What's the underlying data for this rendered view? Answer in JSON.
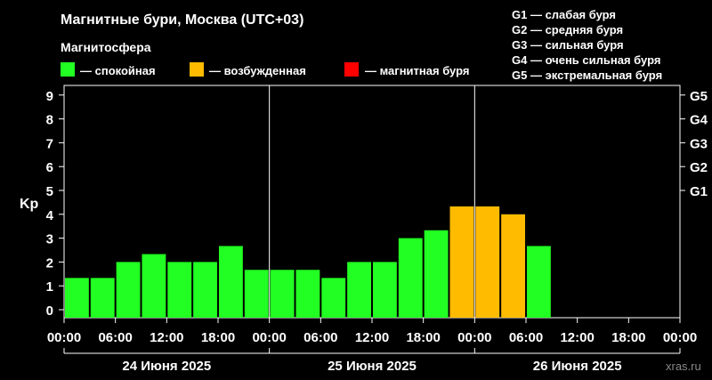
{
  "header": {
    "title": "Магнитные бури, Москва (UTC+03)",
    "subtitle": "Магнитосфера"
  },
  "legend": [
    {
      "label": "— спокойная",
      "color": "#22ff22"
    },
    {
      "label": "— возбужденная",
      "color": "#ffbb00"
    },
    {
      "label": "— магнитная буря",
      "color": "#ff0000"
    }
  ],
  "storm_scale": [
    "G1 — слабая буря",
    "G2 — средняя буря",
    "G3 — сильная буря",
    "G4 — очень сильная буря",
    "G5 — экстремальная буря"
  ],
  "watermark": "xras.ru",
  "chart_data": {
    "type": "bar",
    "ylabel": "Kp",
    "ylim": [
      0,
      9
    ],
    "yticks": [
      "0",
      "1",
      "2",
      "3",
      "4",
      "5",
      "6",
      "7",
      "8",
      "9"
    ],
    "right_ticks": [
      {
        "value": 5,
        "label": "G1"
      },
      {
        "value": 6,
        "label": "G2"
      },
      {
        "value": 7,
        "label": "G3"
      },
      {
        "value": 8,
        "label": "G4"
      },
      {
        "value": 9,
        "label": "G5"
      }
    ],
    "x_tick_labels": [
      "00:00",
      "06:00",
      "12:00",
      "18:00",
      "00:00",
      "06:00",
      "12:00",
      "18:00",
      "00:00",
      "06:00",
      "12:00",
      "18:00",
      "00:00"
    ],
    "days": [
      "24 Июня 2025",
      "25 Июня 2025",
      "26 Июня 2025"
    ],
    "interval_hours": 3,
    "total_intervals": 24,
    "values": [
      1.33,
      1.33,
      2.0,
      2.33,
      2.0,
      2.0,
      2.67,
      1.67,
      1.67,
      1.67,
      1.33,
      2.0,
      2.0,
      3.0,
      3.33,
      4.33,
      4.33,
      4.0,
      2.67
    ],
    "thresholds": {
      "excited_min": 4,
      "storm_min": 5
    },
    "colors": {
      "quiet": "#22ff22",
      "excited": "#ffbb00",
      "storm": "#ff0000"
    },
    "grid": false
  }
}
